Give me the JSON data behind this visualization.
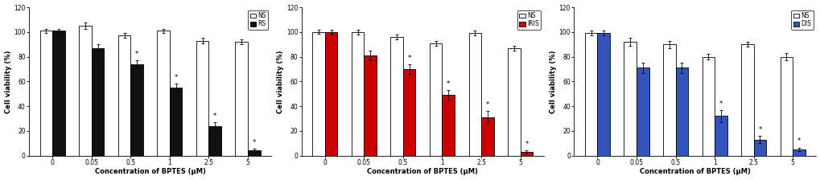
{
  "x_labels": [
    "0",
    "0.05",
    "0.5",
    "1",
    "2.5",
    "5"
  ],
  "xlabel": "Concentration of BPTES (μM)",
  "ylabel": "Cell viability (%)",
  "ylim": [
    0,
    120
  ],
  "yticks": [
    0,
    20,
    40,
    60,
    80,
    100,
    120
  ],
  "panel1": {
    "legend_labels": [
      "NS",
      "RS"
    ],
    "ns_values": [
      101,
      105,
      97,
      101,
      93,
      92
    ],
    "ns_errors": [
      1.5,
      2.5,
      2,
      1.5,
      2,
      2
    ],
    "rs_values": [
      101,
      87,
      74,
      55,
      24,
      4
    ],
    "rs_errors": [
      1.5,
      3,
      3,
      3,
      3,
      1.5
    ],
    "rs_sig": [
      false,
      false,
      true,
      true,
      true,
      true
    ],
    "ns_color": "white",
    "rs_color": "#111111"
  },
  "panel2": {
    "legend_labels": [
      "NS",
      "IRIS"
    ],
    "ns_values": [
      100,
      100,
      96,
      91,
      99,
      87
    ],
    "ns_errors": [
      1.5,
      2,
      2,
      2,
      2,
      2
    ],
    "rs_values": [
      100,
      81,
      70,
      49,
      31,
      3
    ],
    "rs_errors": [
      1.5,
      4,
      4,
      4,
      5,
      1.5
    ],
    "rs_sig": [
      false,
      false,
      true,
      true,
      true,
      true
    ],
    "ns_color": "white",
    "rs_color": "#cc0000"
  },
  "panel3": {
    "legend_labels": [
      "NS",
      "DIS"
    ],
    "ns_values": [
      99,
      92,
      90,
      80,
      90,
      80
    ],
    "ns_errors": [
      2,
      3,
      3,
      2,
      2,
      3
    ],
    "rs_values": [
      99,
      71,
      71,
      32,
      13,
      5
    ],
    "rs_errors": [
      2,
      4,
      4,
      5,
      3,
      1.5
    ],
    "rs_sig": [
      false,
      false,
      false,
      true,
      true,
      true
    ],
    "ns_color": "white",
    "rs_color": "#3355bb"
  },
  "bar_width": 0.32,
  "bar_edgecolor": "black",
  "bar_edgewidth": 0.6,
  "figsize": [
    10.2,
    2.24
  ],
  "dpi": 100,
  "fontsize_axis_label": 6,
  "fontsize_tick": 5.5,
  "fontsize_legend": 5.5,
  "fontsize_star": 6,
  "background_color": "white"
}
